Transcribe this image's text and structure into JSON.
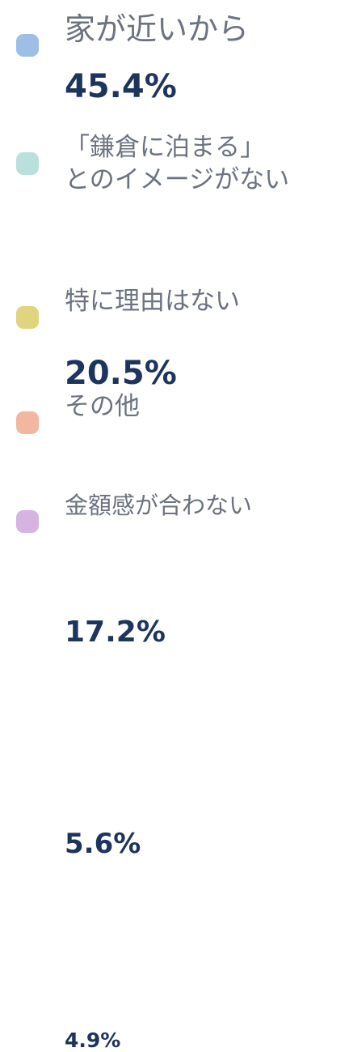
{
  "items": [
    {
      "label": [
        "家が近いから"
      ],
      "value": "45.4%",
      "color": "#9dbfe6"
    },
    {
      "label": [
        "「鎌倉に泊まる」",
        "とのイメージがない"
      ],
      "value": "20.5%",
      "color": "#b9e0dd"
    },
    {
      "label": [
        "特に理由はない"
      ],
      "value": "17.2%",
      "color": "#e0d47e"
    },
    {
      "label": [
        "その他"
      ],
      "value": "5.6%",
      "color": "#f2b79f"
    },
    {
      "label": [
        "金額感が合わない"
      ],
      "value": "4.9%",
      "color": "#d6b3e0"
    }
  ]
}
